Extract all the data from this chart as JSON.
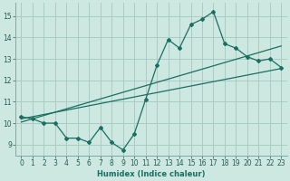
{
  "xlabel": "Humidex (Indice chaleur)",
  "ylabel": "",
  "bg_color": "#cce8e0",
  "grid_color": "#aaccC4",
  "line_color": "#1a6e62",
  "xlim": [
    -0.5,
    23.5
  ],
  "ylim": [
    8.5,
    15.6
  ],
  "xticks": [
    0,
    1,
    2,
    3,
    4,
    5,
    6,
    7,
    8,
    9,
    10,
    11,
    12,
    13,
    14,
    15,
    16,
    17,
    18,
    19,
    20,
    21,
    22,
    23
  ],
  "yticks": [
    9,
    10,
    11,
    12,
    13,
    14,
    15
  ],
  "jagged_x": [
    0,
    1,
    2,
    3,
    4,
    5,
    6,
    7,
    8,
    9,
    10,
    11,
    12,
    13,
    14,
    15,
    16,
    17,
    18,
    19,
    20,
    21,
    22,
    23
  ],
  "jagged_y": [
    10.3,
    10.2,
    10.0,
    10.0,
    9.3,
    9.3,
    9.1,
    9.8,
    9.1,
    8.75,
    9.5,
    11.1,
    12.7,
    13.9,
    13.5,
    14.6,
    14.85,
    15.2,
    13.7,
    13.5,
    13.1,
    12.9,
    13.0,
    12.6
  ],
  "trend1_x": [
    0,
    23
  ],
  "trend1_y": [
    10.05,
    13.6
  ],
  "trend2_x": [
    0,
    23
  ],
  "trend2_y": [
    10.2,
    12.55
  ],
  "marker": "D",
  "marker_size": 2.0,
  "line_width": 0.9
}
